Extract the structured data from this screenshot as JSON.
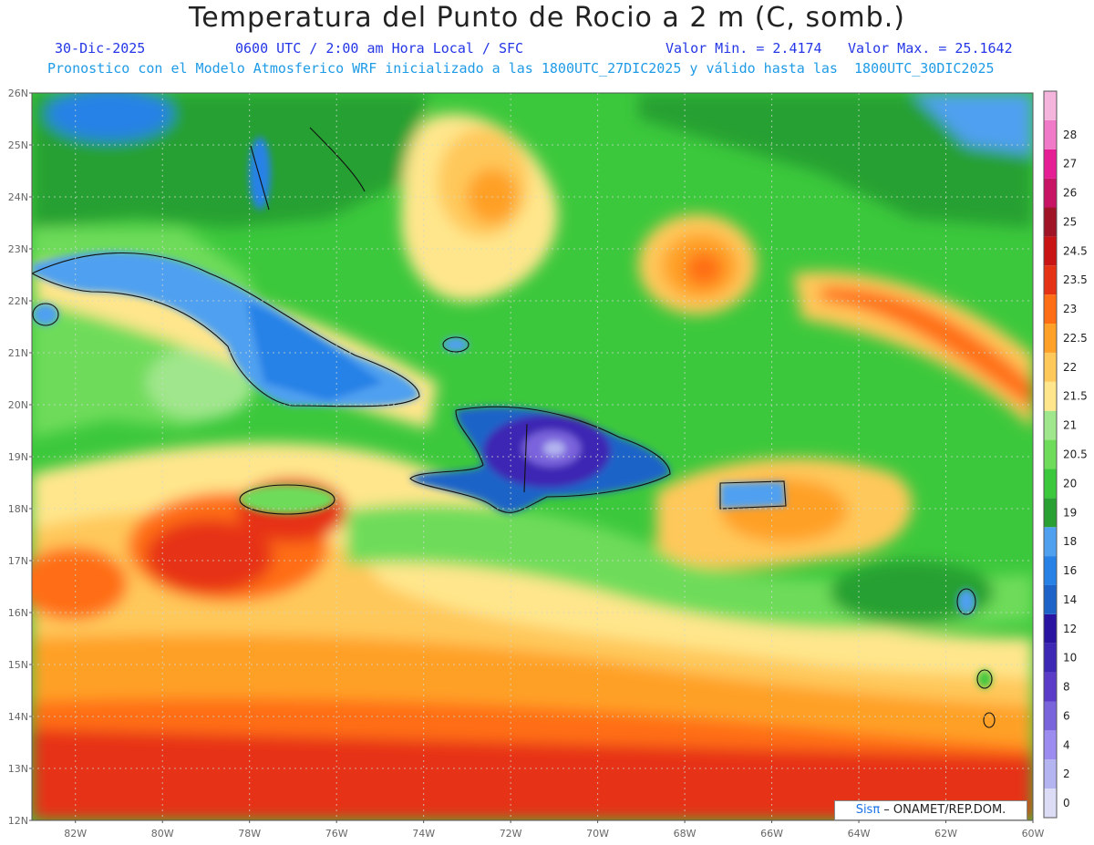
{
  "header": {
    "title": "Temperatura del Punto de Rocio a 2 m (C, somb.)",
    "date": "30-Dic-2025",
    "time": "0600 UTC / 2:00 am Hora Local / SFC",
    "min_label": "Valor Min. = 2.4174",
    "max_label": "Valor Max. = 25.1642",
    "model_line": "Pronostico con el Modelo Atmosferico WRF inicializado a las 1800UTC_27DIC2025 y válido hasta las  1800UTC_30DIC2025"
  },
  "axes": {
    "lat_labels": [
      "26N",
      "25N",
      "24N",
      "23N",
      "22N",
      "21N",
      "20N",
      "19N",
      "18N",
      "17N",
      "16N",
      "15N",
      "14N",
      "13N",
      "12N"
    ],
    "lon_labels": [
      "82W",
      "80W",
      "78W",
      "76W",
      "74W",
      "72W",
      "70W",
      "68W",
      "66W",
      "64W",
      "62W",
      "60W"
    ]
  },
  "colorbar": {
    "labels": [
      "0",
      "2",
      "4",
      "6",
      "8",
      "10",
      "12",
      "14",
      "16",
      "18",
      "19",
      "20",
      "20.5",
      "21",
      "21.5",
      "22",
      "22.5",
      "23",
      "23.5",
      "24.5",
      "25",
      "26",
      "27",
      "28"
    ],
    "colors": [
      "#dcdcf6",
      "#b4b4f0",
      "#9c8cf0",
      "#7a64dc",
      "#5a3cc8",
      "#3c28b4",
      "#2814a0",
      "#1e64c8",
      "#2882e6",
      "#50a0f0",
      "#28a032",
      "#3cc83c",
      "#6edc5a",
      "#a0e68c",
      "#ffe68c",
      "#ffc85a",
      "#ffa028",
      "#ff6e14",
      "#e63214",
      "#c81414",
      "#a01428",
      "#c81464",
      "#e61e96",
      "#f07ac8",
      "#f4b4dc"
    ]
  },
  "credit": {
    "brand": "Sisπ",
    "text": " – ONAMET/REP.DOM."
  }
}
